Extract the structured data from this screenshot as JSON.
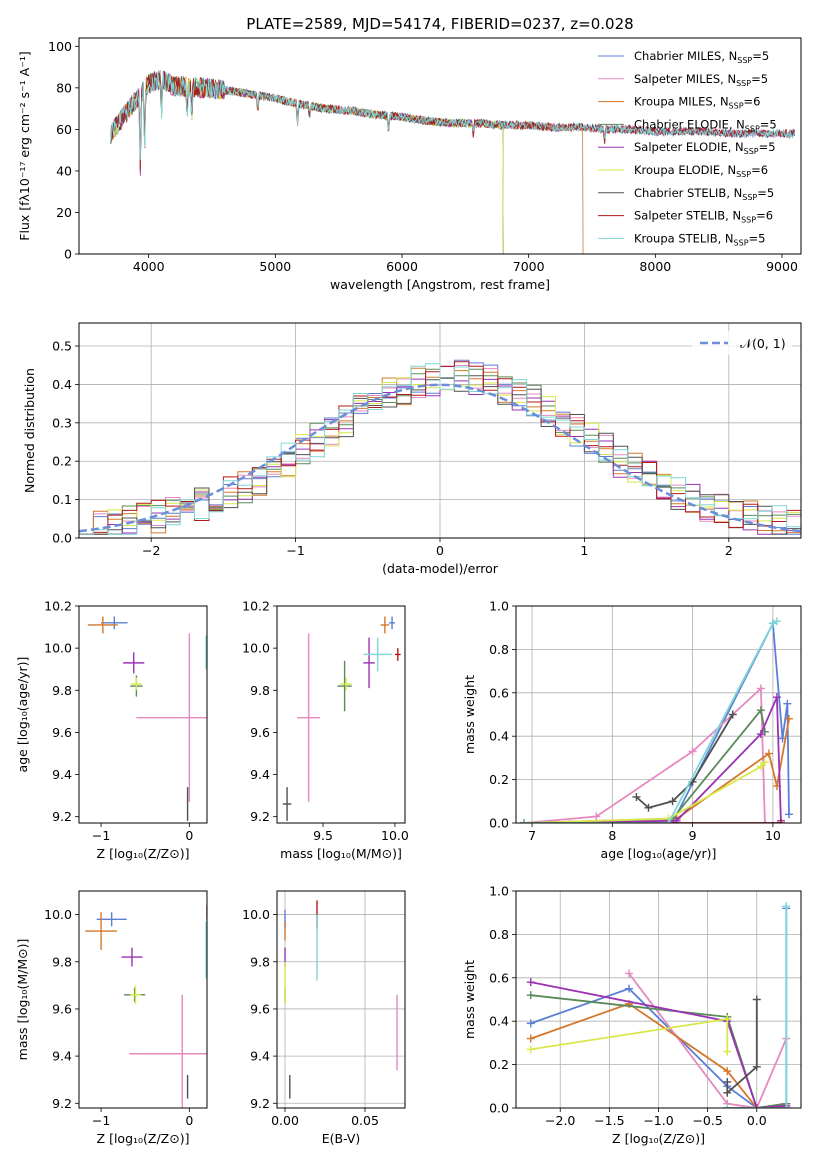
{
  "figure_title": "PLATE=2589, MJD=54174, FIBERID=0237, z=0.028",
  "chart_data": [
    {
      "id": "spectrum",
      "type": "line",
      "title": "PLATE=2589, MJD=54174, FIBERID=0237, z=0.028",
      "xlabel": "wavelength [Angstrom, rest frame]",
      "ylabel": "Flux [fλ10⁻¹⁷ erg cm⁻² s⁻¹ A⁻¹]",
      "xlim": [
        3450,
        9150
      ],
      "ylim": [
        0,
        104
      ],
      "xticks": [
        4000,
        5000,
        6000,
        7000,
        8000,
        9000
      ],
      "yticks": [
        0,
        20,
        40,
        60,
        80,
        100
      ],
      "grid": false,
      "legend": "top-right",
      "continuum_x": [
        3700,
        3800,
        3900,
        4000,
        4100,
        4200,
        4400,
        4600,
        4800,
        5000,
        5200,
        5400,
        5600,
        5800,
        6000,
        6200,
        6400,
        6600,
        6800,
        7000,
        7200,
        7400,
        7600,
        7800,
        8000,
        8200,
        8400,
        8600,
        8800,
        9000
      ],
      "continuum_y": [
        58,
        66,
        74,
        82,
        84,
        81,
        80,
        79,
        77,
        75,
        72,
        70,
        69,
        67,
        66,
        64,
        63,
        63,
        62,
        62,
        61,
        61,
        60,
        60,
        59,
        59,
        59,
        58,
        58,
        58
      ],
      "series": [
        {
          "name": "Chabrier MILES, N_SSP=5",
          "color": "#5b7fd6",
          "xmax": 9100
        },
        {
          "name": "Salpeter MILES, N_SSP=5",
          "color": "#e589c0",
          "xmax": 9100
        },
        {
          "name": "Kroupa MILES, N_SSP=6",
          "color": "#d4782c",
          "xmax": 7430
        },
        {
          "name": "Chabrier ELODIE, N_SSP=5",
          "color": "#5a8a5a",
          "xmax": 6800
        },
        {
          "name": "Salpeter ELODIE, N_SSP=5",
          "color": "#9b32b4",
          "xmax": 6800
        },
        {
          "name": "Kroupa ELODIE, N_SSP=6",
          "color": "#d8e84a",
          "xmax": 6800
        },
        {
          "name": "Chabrier STELIB, N_SSP=5",
          "color": "#505050",
          "xmax": 9100
        },
        {
          "name": "Salpeter STELIB, N_SSP=6",
          "color": "#b21a1a",
          "xmax": 9100
        },
        {
          "name": "Kroupa STELIB, N_SSP=5",
          "color": "#7fd6d6",
          "xmax": 9100
        }
      ]
    },
    {
      "id": "residuals",
      "type": "line",
      "xlabel": "(data-model)/error",
      "ylabel": "Normed distribution",
      "xlim": [
        -2.5,
        2.5
      ],
      "ylim": [
        0,
        0.56
      ],
      "xticks": [
        -2,
        -1,
        0,
        1,
        2
      ],
      "yticks": [
        0.0,
        0.1,
        0.2,
        0.3,
        0.4,
        0.5
      ],
      "grid": true,
      "legend": "top-right",
      "reference": {
        "name": "𝒩(0, 1)",
        "color": "#6a8fd8",
        "style": "dashed"
      },
      "bin_edges_start": -2.5,
      "bin_width": 0.1
    },
    {
      "id": "age-vs-Z",
      "type": "scatter",
      "xlabel": "Z [log₁₀(Z/Z⊙)]",
      "ylabel": "age  [log₁₀(age/yr)]",
      "xlim": [
        -1.25,
        0.2
      ],
      "ylim": [
        9.17,
        10.2
      ],
      "xticks": [
        -1,
        0
      ],
      "yticks": [
        9.2,
        9.4,
        9.6,
        9.8,
        10.0,
        10.2
      ],
      "points": [
        {
          "x": -0.85,
          "y": 10.12,
          "ex": 0.15,
          "ey": 0.03,
          "color": "#5b7fd6"
        },
        {
          "x": 0.0,
          "y": 9.67,
          "ex": 0.6,
          "ey": 0.4,
          "color": "#e589c0"
        },
        {
          "x": -0.98,
          "y": 10.11,
          "ex": 0.17,
          "ey": 0.04,
          "color": "#d4782c"
        },
        {
          "x": -0.6,
          "y": 9.82,
          "ex": 0.07,
          "ey": 0.05,
          "color": "#5a8a5a"
        },
        {
          "x": -0.63,
          "y": 9.93,
          "ex": 0.12,
          "ey": 0.05,
          "color": "#9b32b4"
        },
        {
          "x": -0.6,
          "y": 9.83,
          "ex": 0.06,
          "ey": 0.03,
          "color": "#d8e84a"
        },
        {
          "x": -0.02,
          "y": 9.26,
          "ex": 0.0,
          "ey": 0.08,
          "color": "#505050"
        },
        {
          "x": 0.2,
          "y": 9.95,
          "ex": 0.0,
          "ey": 0.05,
          "color": "#b21a1a"
        },
        {
          "x": 0.19,
          "y": 9.98,
          "ex": 0.0,
          "ey": 0.08,
          "color": "#7fd6d6"
        }
      ]
    },
    {
      "id": "age-vs-mass",
      "type": "scatter",
      "xlabel": "mass [log₁₀(M/M⊙)]",
      "ylabel": "",
      "xlim": [
        9.18,
        10.07
      ],
      "ylim": [
        9.17,
        10.2
      ],
      "xticks": [
        9.5,
        10.0
      ],
      "yticks": [
        9.2,
        9.4,
        9.6,
        9.8,
        10.0,
        10.2
      ],
      "points": [
        {
          "x": 9.98,
          "y": 10.12,
          "ex": 0.02,
          "ey": 0.03,
          "color": "#5b7fd6"
        },
        {
          "x": 9.4,
          "y": 9.67,
          "ex": 0.08,
          "ey": 0.4,
          "color": "#e589c0"
        },
        {
          "x": 9.93,
          "y": 10.11,
          "ex": 0.03,
          "ey": 0.04,
          "color": "#d4782c"
        },
        {
          "x": 9.65,
          "y": 9.82,
          "ex": 0.05,
          "ey": 0.12,
          "color": "#5a8a5a"
        },
        {
          "x": 9.82,
          "y": 9.93,
          "ex": 0.04,
          "ey": 0.12,
          "color": "#9b32b4"
        },
        {
          "x": 9.66,
          "y": 9.83,
          "ex": 0.04,
          "ey": 0.03,
          "color": "#d8e84a"
        },
        {
          "x": 9.25,
          "y": 9.26,
          "ex": 0.03,
          "ey": 0.08,
          "color": "#505050"
        },
        {
          "x": 10.02,
          "y": 9.97,
          "ex": 0.02,
          "ey": 0.03,
          "color": "#b21a1a"
        },
        {
          "x": 9.88,
          "y": 9.97,
          "ex": 0.1,
          "ey": 0.08,
          "color": "#7fd6d6"
        }
      ]
    },
    {
      "id": "weight-vs-age",
      "type": "line",
      "xlabel": "age  [log₁₀(age/yr)]",
      "ylabel": "mass weight",
      "xlim": [
        6.8,
        10.35
      ],
      "ylim": [
        0,
        1.0
      ],
      "xticks": [
        7,
        8,
        9,
        10
      ],
      "yticks": [
        0.0,
        0.2,
        0.4,
        0.6,
        0.8,
        1.0
      ],
      "grid": true,
      "series": [
        {
          "color": "#5b7fd6",
          "x": [
            6.9,
            8.75,
            10.0,
            10.12,
            10.18,
            10.2
          ],
          "y": [
            0.0,
            0.0,
            0.92,
            0.39,
            0.55,
            0.04
          ]
        },
        {
          "color": "#e589c0",
          "x": [
            6.9,
            7.8,
            9.0,
            9.85,
            9.9
          ],
          "y": [
            0.0,
            0.03,
            0.33,
            0.62,
            0.0
          ]
        },
        {
          "color": "#d4782c",
          "x": [
            6.9,
            8.8,
            9.95,
            10.05,
            10.2
          ],
          "y": [
            0.0,
            0.02,
            0.32,
            0.17,
            0.48
          ]
        },
        {
          "color": "#5a8a5a",
          "x": [
            6.9,
            8.75,
            9.85,
            9.9
          ],
          "y": [
            0.0,
            0.02,
            0.52,
            0.42
          ]
        },
        {
          "color": "#9b32b4",
          "x": [
            6.9,
            8.8,
            9.85,
            10.05,
            10.1
          ],
          "y": [
            0.0,
            0.01,
            0.41,
            0.58,
            0.01
          ]
        },
        {
          "color": "#d8e84a",
          "x": [
            6.9,
            8.7,
            9.85,
            9.9
          ],
          "y": [
            0.0,
            0.02,
            0.26,
            0.28
          ]
        },
        {
          "color": "#505050",
          "x": [
            8.3,
            8.45,
            8.75,
            9.0,
            9.5
          ],
          "y": [
            0.12,
            0.07,
            0.1,
            0.19,
            0.5
          ]
        },
        {
          "color": "#b21a1a",
          "x": [
            6.9,
            10.1
          ],
          "y": [
            0.0,
            0.0
          ]
        },
        {
          "color": "#7fd6d6",
          "x": [
            6.9,
            8.7,
            10.0,
            10.05
          ],
          "y": [
            0.0,
            0.0,
            0.92,
            0.93
          ]
        }
      ]
    },
    {
      "id": "mass-vs-Z",
      "type": "scatter",
      "xlabel": "Z [log₁₀(Z/Z⊙)]",
      "ylabel": "mass [log₁₀(M/M⊙)]",
      "xlim": [
        -1.25,
        0.2
      ],
      "ylim": [
        9.18,
        10.1
      ],
      "xticks": [
        -1,
        0
      ],
      "yticks": [
        9.2,
        9.4,
        9.6,
        9.8,
        10.0
      ],
      "points": [
        {
          "x": -0.88,
          "y": 9.98,
          "ex": 0.17,
          "ey": 0.03,
          "color": "#5b7fd6"
        },
        {
          "x": -0.08,
          "y": 9.41,
          "ex": 0.6,
          "ey": 0.25,
          "color": "#e589c0"
        },
        {
          "x": -1.0,
          "y": 9.93,
          "ex": 0.18,
          "ey": 0.08,
          "color": "#d4782c"
        },
        {
          "x": -0.62,
          "y": 9.66,
          "ex": 0.12,
          "ey": 0.03,
          "color": "#5a8a5a"
        },
        {
          "x": -0.65,
          "y": 9.82,
          "ex": 0.12,
          "ey": 0.04,
          "color": "#9b32b4"
        },
        {
          "x": -0.61,
          "y": 9.66,
          "ex": 0.06,
          "ey": 0.04,
          "color": "#d8e84a"
        },
        {
          "x": -0.02,
          "y": 9.27,
          "ex": 0.0,
          "ey": 0.05,
          "color": "#505050"
        },
        {
          "x": 0.2,
          "y": 10.01,
          "ex": 0.0,
          "ey": 0.03,
          "color": "#b21a1a"
        },
        {
          "x": 0.19,
          "y": 9.85,
          "ex": 0.0,
          "ey": 0.12,
          "color": "#7fd6d6"
        }
      ]
    },
    {
      "id": "mass-vs-ebv",
      "type": "scatter",
      "xlabel": "E(B-V)",
      "ylabel": "",
      "xlim": [
        -0.005,
        0.075
      ],
      "ylim": [
        9.18,
        10.1
      ],
      "xticks": [
        0.0,
        0.05
      ],
      "yticks": [
        9.2,
        9.4,
        9.6,
        9.8,
        10.0
      ],
      "grid": true,
      "points": [
        {
          "x": 0.0,
          "y": 9.98,
          "ex": 0.0,
          "ey": 0.04,
          "color": "#5b7fd6"
        },
        {
          "x": 0.07,
          "y": 9.5,
          "ex": 0.0,
          "ey": 0.16,
          "color": "#e589c0"
        },
        {
          "x": 0.0,
          "y": 9.93,
          "ex": 0.0,
          "ey": 0.04,
          "color": "#d4782c"
        },
        {
          "x": 0.0,
          "y": 9.66,
          "ex": 0.0,
          "ey": 0.03,
          "color": "#5a8a5a"
        },
        {
          "x": 0.0,
          "y": 9.82,
          "ex": 0.0,
          "ey": 0.04,
          "color": "#9b32b4"
        },
        {
          "x": 0.0,
          "y": 9.71,
          "ex": 0.0,
          "ey": 0.09,
          "color": "#d8e84a"
        },
        {
          "x": 0.003,
          "y": 9.27,
          "ex": 0.0,
          "ey": 0.05,
          "color": "#505050"
        },
        {
          "x": 0.02,
          "y": 10.0,
          "ex": 0.0,
          "ey": 0.06,
          "color": "#b21a1a"
        },
        {
          "x": 0.02,
          "y": 9.86,
          "ex": 0.0,
          "ey": 0.14,
          "color": "#7fd6d6"
        }
      ]
    },
    {
      "id": "weight-vs-Z",
      "type": "line",
      "xlabel": "Z [log₁₀(Z/Z⊙)]",
      "ylabel": "mass weight",
      "xlim": [
        -2.45,
        0.45
      ],
      "ylim": [
        0,
        1.0
      ],
      "xticks": [
        -2.0,
        -1.5,
        -1.0,
        -0.5,
        0.0
      ],
      "yticks": [
        0.0,
        0.2,
        0.4,
        0.6,
        0.8,
        1.0
      ],
      "grid": true,
      "series": [
        {
          "color": "#5b7fd6",
          "x": [
            -2.3,
            -1.3,
            -0.3,
            0.0,
            0.3,
            0.3
          ],
          "y": [
            0.39,
            0.55,
            0.1,
            0.0,
            0.02,
            0.92
          ]
        },
        {
          "color": "#e589c0",
          "x": [
            -1.3,
            -0.3,
            0.0,
            0.3
          ],
          "y": [
            0.62,
            0.02,
            0.0,
            0.32
          ]
        },
        {
          "color": "#d4782c",
          "x": [
            -2.3,
            -1.3,
            -0.3,
            0.0,
            0.3
          ],
          "y": [
            0.32,
            0.48,
            0.17,
            0.0,
            0.02
          ]
        },
        {
          "color": "#5a8a5a",
          "x": [
            -2.3,
            -0.3,
            0.0,
            0.3
          ],
          "y": [
            0.52,
            0.42,
            0.0,
            0.02
          ]
        },
        {
          "color": "#9b32b4",
          "x": [
            -2.3,
            -0.3,
            0.0,
            0.3
          ],
          "y": [
            0.58,
            0.4,
            0.0,
            0.01
          ]
        },
        {
          "color": "#d8e84a",
          "x": [
            -2.3,
            -0.3,
            -0.3
          ],
          "y": [
            0.27,
            0.41,
            0.26
          ]
        },
        {
          "color": "#505050",
          "x": [
            -0.3,
            -0.3,
            0.0,
            0.0
          ],
          "y": [
            0.12,
            0.07,
            0.19,
            0.5
          ]
        },
        {
          "color": "#b21a1a",
          "x": [
            -0.3,
            0.3
          ],
          "y": [
            0.0,
            0.0
          ]
        },
        {
          "color": "#7fd6d6",
          "x": [
            -0.3,
            0.3,
            0.3
          ],
          "y": [
            0.0,
            0.0,
            0.93
          ]
        }
      ]
    }
  ]
}
